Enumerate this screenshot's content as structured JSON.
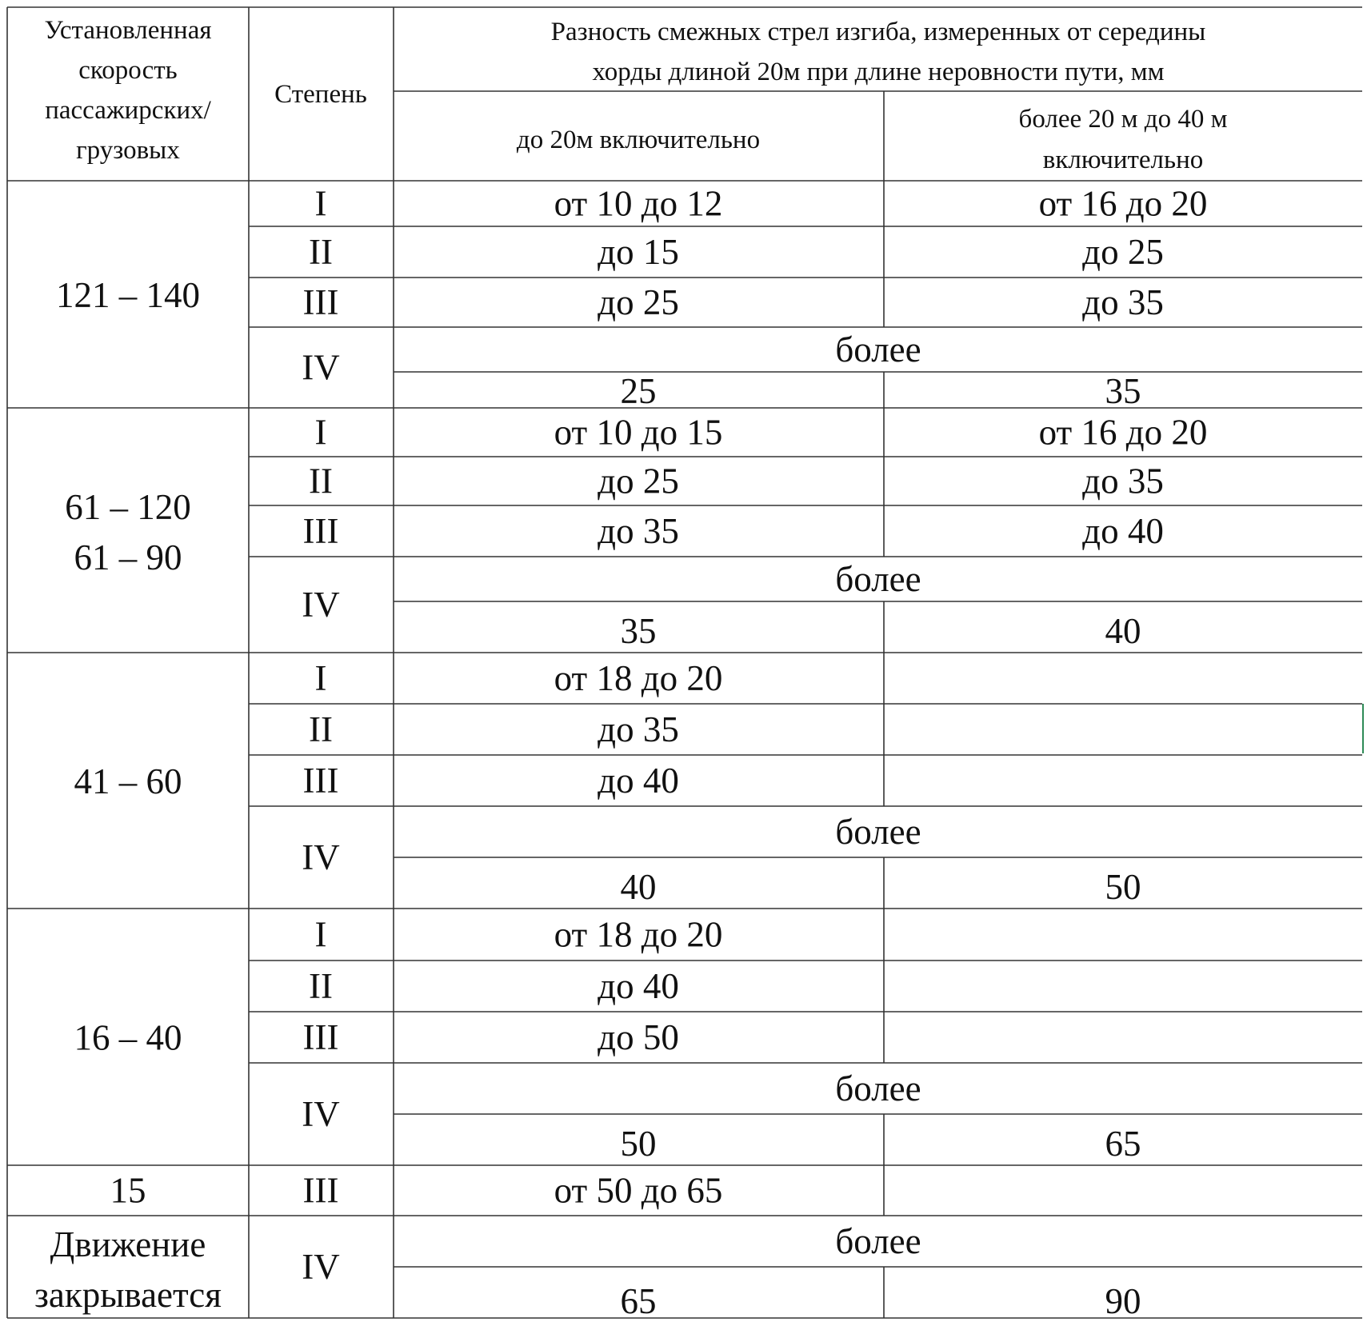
{
  "header": {
    "speed_label": [
      "Установленная",
      "скорость",
      "пассажирских/",
      "грузовых"
    ],
    "degree_label": "Степень",
    "group_label": [
      "Разность смежных стрел изгиба, измеренных от середины",
      "хорды длиной 20м при длине неровности пути, мм"
    ],
    "col1_label": "до 20м включительно",
    "col2_label": [
      "более 20 м до 40 м",
      "включительно"
    ]
  },
  "groups": [
    {
      "speed": [
        "121 – 140"
      ],
      "rows": [
        {
          "degree": "I",
          "c1": "от 10 до 12",
          "c2": "от 16 до 20"
        },
        {
          "degree": "II",
          "c1": "до 15",
          "c2": "до 25"
        },
        {
          "degree": "III",
          "c1": "до 25",
          "c2": "до 35"
        }
      ],
      "iv": {
        "degree": "IV",
        "over": "более",
        "c1": "25",
        "c2": "35"
      }
    },
    {
      "speed": [
        "61 – 120",
        "61 – 90"
      ],
      "rows": [
        {
          "degree": "I",
          "c1": "от 10 до 15",
          "c2": "от 16 до 20"
        },
        {
          "degree": "II",
          "c1": "до 25",
          "c2": "до 35"
        },
        {
          "degree": "III",
          "c1": "до 35",
          "c2": "до 40"
        }
      ],
      "iv": {
        "degree": "IV",
        "over": "более",
        "c1": "35",
        "c2": "40"
      }
    },
    {
      "speed": [
        "41 – 60"
      ],
      "rows": [
        {
          "degree": "I",
          "c1": "от 18 до 20",
          "c2": ""
        },
        {
          "degree": "II",
          "c1": "до 35",
          "c2": ""
        },
        {
          "degree": "III",
          "c1": "до 40",
          "c2": ""
        }
      ],
      "iv": {
        "degree": "IV",
        "over": "более",
        "c1": "40",
        "c2": "50"
      }
    },
    {
      "speed": [
        "16 – 40"
      ],
      "rows": [
        {
          "degree": "I",
          "c1": "от 18 до 20",
          "c2": ""
        },
        {
          "degree": "II",
          "c1": "до 40",
          "c2": ""
        },
        {
          "degree": "III",
          "c1": "до 50",
          "c2": ""
        }
      ],
      "iv": {
        "degree": "IV",
        "over": "более",
        "c1": "50",
        "c2": "65"
      }
    }
  ],
  "row15": {
    "speed": "15",
    "degree": "III",
    "c1": "от 50 до 65",
    "c2": ""
  },
  "closed": {
    "speed": [
      "Движение",
      "закрывается"
    ],
    "degree": "IV",
    "over": "более",
    "c1": "65",
    "c2": "90"
  },
  "colors": {
    "grid": "#222222",
    "text": "#111111",
    "cell_marker": "#2e8b57"
  }
}
